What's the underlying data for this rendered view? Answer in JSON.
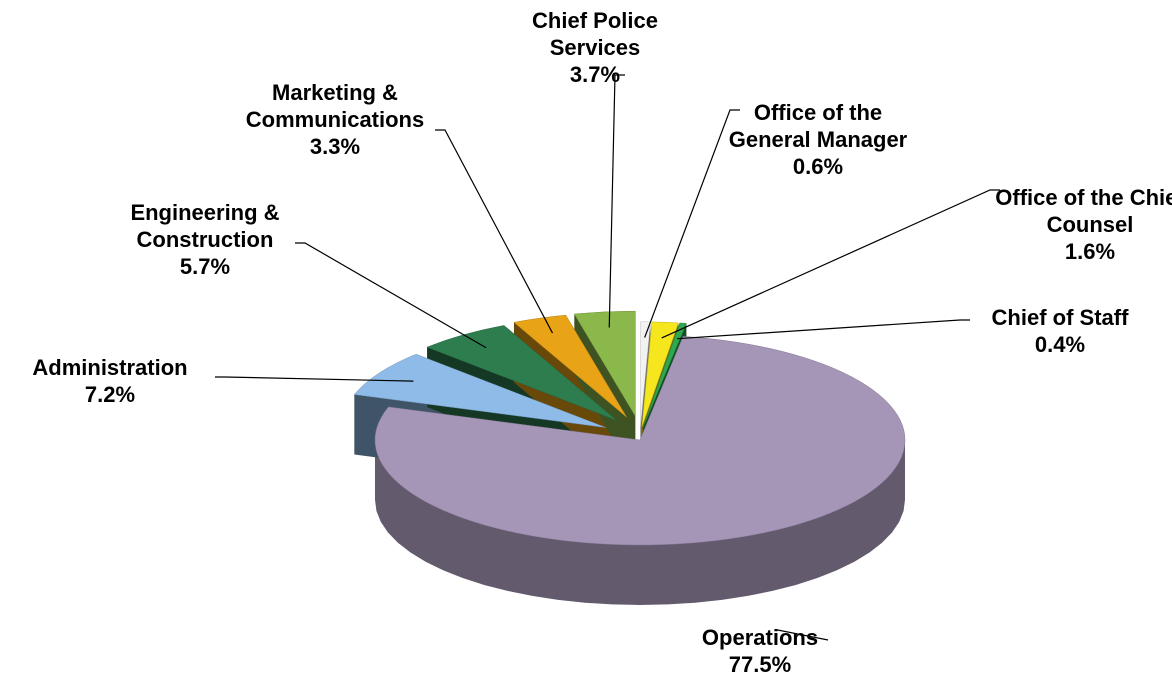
{
  "chart_data": {
    "type": "pie3d",
    "categories": [
      "Office of the\nGeneral Manager",
      "Office of the Chief\nCounsel",
      "Chief of Staff",
      "Operations",
      "Administration",
      "Engineering &\nConstruction",
      "Marketing &\nCommunications",
      "Chief Police\nServices"
    ],
    "values": [
      0.6,
      1.6,
      0.4,
      77.5,
      7.2,
      5.7,
      3.3,
      3.7
    ],
    "value_labels": [
      "0.6%",
      "1.6%",
      "0.4%",
      "77.5%",
      "7.2%",
      "5.7%",
      "3.3%",
      "3.7%"
    ],
    "colors": [
      "#f2f2f2",
      "#f5e61e",
      "#2fa84f",
      "#a596b8",
      "#8fbbe8",
      "#2e7d4f",
      "#e8a317",
      "#8ab84a"
    ]
  }
}
